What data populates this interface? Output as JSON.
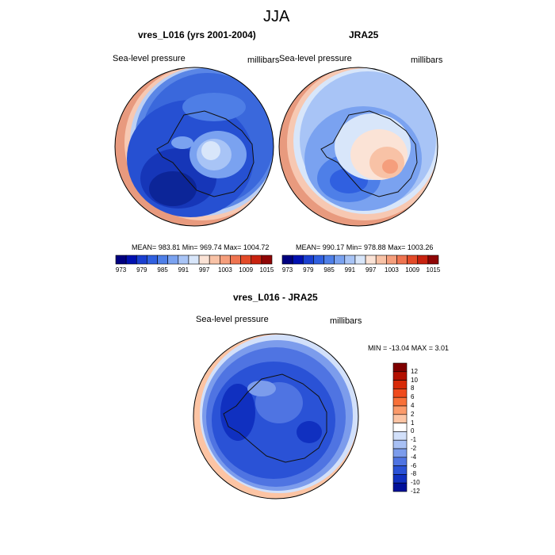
{
  "figure": {
    "season": "JJA",
    "variable": "Sea-level pressure",
    "units": "millibars"
  },
  "panels": [
    {
      "title": "vres_L016 (yrs 2001-2004)",
      "variable": "Sea-level pressure",
      "units": "millibars",
      "stats": "MEAN= 983.81  Min= 969.74  Max= 1004.72"
    },
    {
      "title": "JRA25",
      "variable": "Sea-level pressure",
      "units": "millibars",
      "stats": "MEAN= 990.17  Min= 978.88  Max= 1003.26"
    }
  ],
  "top_colorbar": {
    "colors": [
      "#00007f",
      "#0010b0",
      "#1a3fd0",
      "#3060e0",
      "#4e7fe8",
      "#7aa2f0",
      "#a8c4f6",
      "#d8e6fa",
      "#fbe3d6",
      "#f8c2a6",
      "#f59e7c",
      "#ef7450",
      "#e34a28",
      "#c8220f",
      "#8f0505"
    ],
    "labels": [
      "973",
      "979",
      "985",
      "991",
      "997",
      "1003",
      "1009",
      "1015"
    ]
  },
  "diff_panel": {
    "title": "vres_L016 - JRA25",
    "variable": "Sea-level pressure",
    "units": "millibars",
    "stats": "MIN = -13.04 MAX =   3.01",
    "colorbar": {
      "colors": [
        "#7f0000",
        "#b31000",
        "#d72a08",
        "#ef4a1c",
        "#f87038",
        "#fb9a6a",
        "#fcc4a4",
        "#ffffff",
        "#d2e0fa",
        "#a8c0f4",
        "#7c9cec",
        "#4f74e2",
        "#2a52d6",
        "#1030c0",
        "#00109a"
      ],
      "labels": [
        "12",
        "10",
        "8",
        "6",
        "4",
        "2",
        "1",
        "0",
        "-1",
        "-2",
        "-4",
        "-6",
        "-8",
        "-10",
        "-12"
      ]
    }
  },
  "map_colors": {
    "outline": "#000000",
    "continent_line": "#111111"
  }
}
